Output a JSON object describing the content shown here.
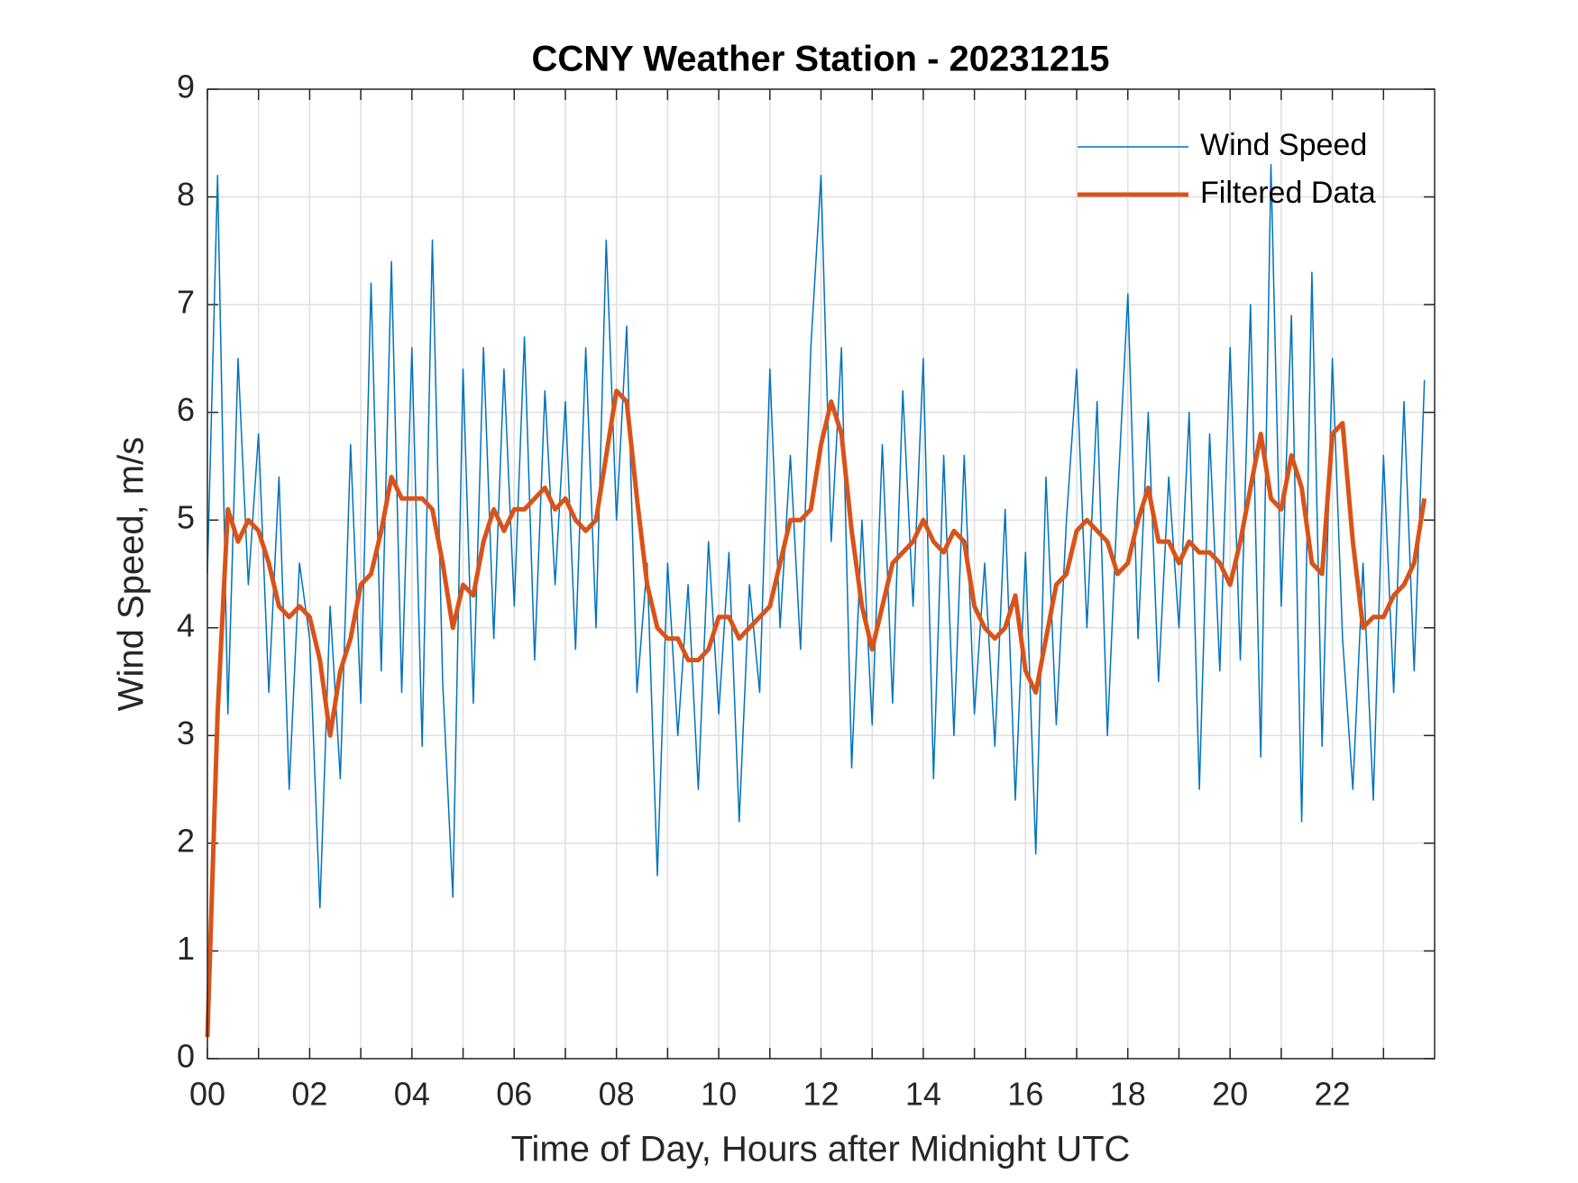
{
  "chart_data": {
    "type": "line",
    "title": "CCNY Weather Station - 20231215",
    "xlabel": "Time of Day, Hours after Midnight UTC",
    "ylabel": "Wind Speed, m/s",
    "x": [
      0,
      0.2,
      0.4,
      0.6,
      0.8,
      1,
      1.2,
      1.4,
      1.6,
      1.8,
      2,
      2.2,
      2.4,
      2.6,
      2.8,
      3,
      3.2,
      3.4,
      3.6,
      3.8,
      4,
      4.2,
      4.4,
      4.6,
      4.8,
      5,
      5.2,
      5.4,
      5.6,
      5.8,
      6,
      6.2,
      6.4,
      6.6,
      6.8,
      7,
      7.2,
      7.4,
      7.6,
      7.8,
      8,
      8.2,
      8.4,
      8.6,
      8.8,
      9,
      9.2,
      9.4,
      9.6,
      9.8,
      10,
      10.2,
      10.4,
      10.6,
      10.8,
      11,
      11.2,
      11.4,
      11.6,
      11.8,
      12,
      12.2,
      12.4,
      12.6,
      12.8,
      13,
      13.2,
      13.4,
      13.6,
      13.8,
      14,
      14.2,
      14.4,
      14.6,
      14.8,
      15,
      15.2,
      15.4,
      15.6,
      15.8,
      16,
      16.2,
      16.4,
      16.6,
      16.8,
      17,
      17.2,
      17.4,
      17.6,
      17.8,
      18,
      18.2,
      18.4,
      18.6,
      18.8,
      19,
      19.2,
      19.4,
      19.6,
      19.8,
      20,
      20.2,
      20.4,
      20.6,
      20.8,
      21,
      21.2,
      21.4,
      21.6,
      21.8,
      22,
      22.2,
      22.4,
      22.6,
      22.8,
      23,
      23.2,
      23.4,
      23.6,
      23.8
    ],
    "series": [
      {
        "name": "Wind Speed",
        "color": "#0072bd",
        "width": 1.5,
        "values": [
          4.5,
          8.2,
          3.2,
          6.5,
          4.4,
          5.8,
          3.4,
          5.4,
          2.5,
          4.6,
          3.9,
          1.4,
          4.2,
          2.6,
          5.7,
          3.3,
          7.2,
          3.6,
          7.4,
          3.4,
          6.6,
          2.9,
          7.6,
          3.5,
          1.5,
          6.4,
          3.3,
          6.6,
          3.9,
          6.4,
          4.2,
          6.7,
          3.7,
          6.2,
          4.4,
          6.1,
          3.8,
          6.6,
          4.0,
          7.6,
          5.0,
          6.8,
          3.4,
          4.6,
          1.7,
          4.6,
          3.0,
          4.4,
          2.5,
          4.8,
          3.2,
          4.7,
          2.2,
          4.4,
          3.4,
          6.4,
          4.0,
          5.6,
          3.8,
          6.6,
          8.2,
          4.8,
          6.6,
          2.7,
          5.0,
          3.1,
          5.7,
          3.3,
          6.2,
          4.2,
          6.5,
          2.6,
          5.6,
          3.0,
          5.6,
          3.2,
          4.6,
          2.9,
          5.1,
          2.4,
          4.7,
          1.9,
          5.4,
          3.1,
          5.0,
          6.4,
          4.0,
          6.1,
          3.0,
          5.2,
          7.1,
          3.9,
          6.0,
          3.5,
          5.4,
          4.0,
          6.0,
          2.5,
          5.8,
          3.6,
          6.6,
          3.7,
          7.0,
          2.8,
          8.3,
          4.2,
          6.9,
          2.2,
          7.3,
          2.9,
          6.5,
          3.9,
          2.5,
          4.6,
          2.4,
          5.6,
          3.4,
          6.1,
          3.6,
          6.3
        ]
      },
      {
        "name": "Filtered Data",
        "color": "#d95319",
        "width": 5,
        "values": [
          0.2,
          3.2,
          5.1,
          4.8,
          5.0,
          4.9,
          4.6,
          4.2,
          4.1,
          4.2,
          4.1,
          3.7,
          3.0,
          3.6,
          3.9,
          4.4,
          4.5,
          4.9,
          5.4,
          5.2,
          5.2,
          5.2,
          5.1,
          4.6,
          4.0,
          4.4,
          4.3,
          4.8,
          5.1,
          4.9,
          5.1,
          5.1,
          5.2,
          5.3,
          5.1,
          5.2,
          5.0,
          4.9,
          5.0,
          5.6,
          6.2,
          6.1,
          5.2,
          4.4,
          4.0,
          3.9,
          3.9,
          3.7,
          3.7,
          3.8,
          4.1,
          4.1,
          3.9,
          4.0,
          4.1,
          4.2,
          4.6,
          5.0,
          5.0,
          5.1,
          5.7,
          6.1,
          5.8,
          4.9,
          4.2,
          3.8,
          4.2,
          4.6,
          4.7,
          4.8,
          5.0,
          4.8,
          4.7,
          4.9,
          4.8,
          4.2,
          4.0,
          3.9,
          4.0,
          4.3,
          3.6,
          3.4,
          3.9,
          4.4,
          4.5,
          4.9,
          5.0,
          4.9,
          4.8,
          4.5,
          4.6,
          5.0,
          5.3,
          4.8,
          4.8,
          4.6,
          4.8,
          4.7,
          4.7,
          4.6,
          4.4,
          4.8,
          5.3,
          5.8,
          5.2,
          5.1,
          5.6,
          5.3,
          4.6,
          4.5,
          5.8,
          5.9,
          4.8,
          4.0,
          4.1,
          4.1,
          4.3,
          4.4,
          4.6,
          5.2
        ]
      }
    ],
    "xlim": [
      0,
      24
    ],
    "xticks": [
      {
        "value": 0,
        "label": "00"
      },
      {
        "value": 2,
        "label": "02"
      },
      {
        "value": 4,
        "label": "04"
      },
      {
        "value": 6,
        "label": "06"
      },
      {
        "value": 8,
        "label": "08"
      },
      {
        "value": 10,
        "label": "10"
      },
      {
        "value": 12,
        "label": "12"
      },
      {
        "value": 14,
        "label": "14"
      },
      {
        "value": 16,
        "label": "16"
      },
      {
        "value": 18,
        "label": "18"
      },
      {
        "value": 20,
        "label": "20"
      },
      {
        "value": 22,
        "label": "22"
      }
    ],
    "xminor": [
      1,
      3,
      5,
      7,
      9,
      11,
      13,
      15,
      17,
      19,
      21,
      23
    ],
    "ylim": [
      0,
      9
    ],
    "yticks": [
      0,
      1,
      2,
      3,
      4,
      5,
      6,
      7,
      8,
      9
    ],
    "grid": true,
    "legend": "northeast"
  }
}
